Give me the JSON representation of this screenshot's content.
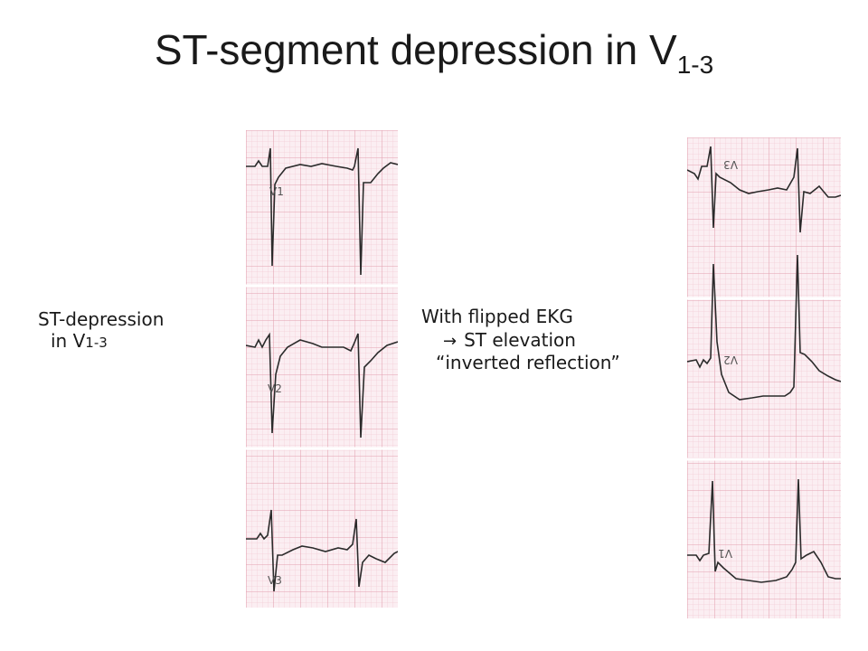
{
  "slide": {
    "title_main": "ST-segment depression in V",
    "title_sub": "1-3"
  },
  "left_caption": {
    "line1": "ST-depression",
    "line2_main": "in V",
    "line2_sub": "1-3"
  },
  "right_caption": {
    "line1": "With flipped EKG",
    "arrow": "→",
    "line2": "ST elevation",
    "line3": "“inverted reflection”"
  },
  "ekg_left": {
    "leads": [
      "V1",
      "V2",
      "V3"
    ]
  },
  "ekg_right": {
    "leads": [
      "V3",
      "V2",
      "V1"
    ]
  },
  "colors": {
    "grid_major": "#e9a9b6",
    "grid_minor": "#f5d3da",
    "paper": "#fbeef1",
    "trace": "#2a2a2a"
  }
}
